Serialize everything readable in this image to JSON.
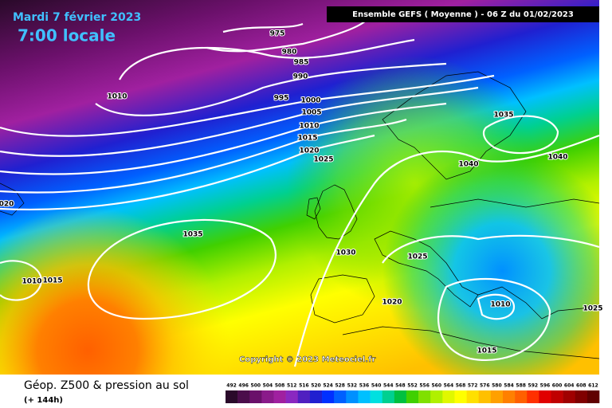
{
  "header": {
    "date": "Mardi 7 février 2023",
    "time": "7:00 locale",
    "model": "Ensemble GEFS  ( Moyenne )  - 06 Z du 01/02/2023",
    "copyright": "Copyright © 2023 Meteociel.fr"
  },
  "footer": {
    "title": "Géop. Z500 & pression au sol",
    "lead": "(+ 144h)"
  },
  "isobar_labels": [
    975,
    980,
    985,
    990,
    995,
    1000,
    1005,
    1010,
    1015,
    1020,
    1025,
    1010,
    1035,
    1040,
    1040,
    1035,
    1030,
    1025,
    1020,
    1010,
    1015,
    1025,
    1010,
    1015,
    "020"
  ],
  "legend": {
    "levels": [
      492,
      496,
      500,
      504,
      508,
      512,
      516,
      520,
      524,
      528,
      532,
      536,
      540,
      544,
      548,
      552,
      556,
      560,
      564,
      568,
      572,
      576,
      580,
      584,
      588,
      592,
      596,
      600,
      604,
      608,
      612
    ],
    "colors": [
      "#2a0a2a",
      "#4b0d4b",
      "#6a106a",
      "#8a1a8a",
      "#a020a0",
      "#8a28c0",
      "#5020c0",
      "#2020d0",
      "#0030ff",
      "#0060ff",
      "#0090ff",
      "#00c0ff",
      "#00e0e0",
      "#00d090",
      "#00c040",
      "#40d000",
      "#80e000",
      "#b0f000",
      "#e0f800",
      "#ffff00",
      "#ffe000",
      "#ffc000",
      "#ffa000",
      "#ff8000",
      "#ff6000",
      "#ff3000",
      "#e00000",
      "#c00000",
      "#a00000",
      "#800000",
      "#600000"
    ]
  }
}
